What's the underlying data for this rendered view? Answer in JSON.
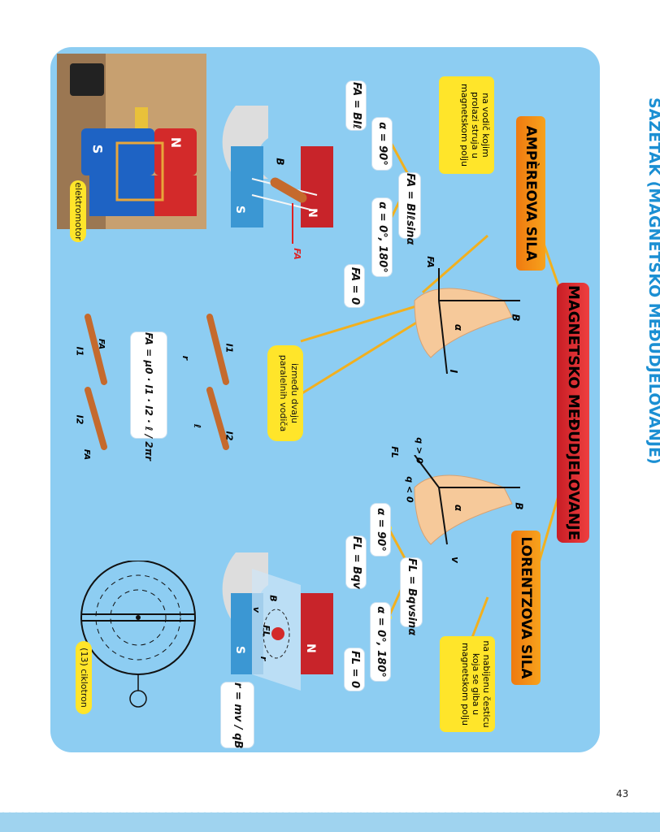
{
  "title": "SAŽETAK (MAGNETSKO MEĐUDJELOVANJE)",
  "center_title": "MAGNETSKO MEĐUDJELOVANJE",
  "ampere": {
    "title": "AMPÈREOVA SILA",
    "desc": "na vodič kojim prolazi struja u magnetskom polju",
    "formula": "FA = BIℓsinα",
    "case_90": "α = 90°",
    "case_90_result": "FA = BIℓ",
    "case_0": "α = 0°, 180°",
    "case_0_result": "FA = 0",
    "parallel_desc": "između dvaju paralelnih vodiča",
    "parallel_formula": "FA = μ0 · I1 · I2 · ℓ / 2πr",
    "magnet_n": "N",
    "magnet_s": "S",
    "label_b": "B",
    "label_fa": "FA",
    "label_i": "I",
    "label_a": "α",
    "label_i1": "I1",
    "label_i2": "I2",
    "label_r": "r",
    "label_l": "ℓ"
  },
  "lorentz": {
    "title": "LORENTZOVA SILA",
    "desc": "na nabijenu česticu koja se giba u magnetskom polju",
    "formula": "FL = Bqvsinα",
    "case_90": "α = 90°",
    "case_90_result": "FL = Bqv",
    "case_0": "α = 0°, 180°",
    "case_0_result": "FL = 0",
    "radius_formula": "r = mv / qB",
    "label_q_pos": "q > 0",
    "label_q_neg": "q < 0",
    "label_fl": "FL",
    "label_v": "v",
    "label_b": "B",
    "label_a": "α",
    "label_r": "r"
  },
  "photo_label": "elektromotor",
  "cyclotron_label": "(13) ciklotron",
  "page_number": "43",
  "colors": {
    "panel": "#8dcdf2",
    "title_blue": "#1b8fd3",
    "red": "#d42a2f",
    "orange": "#f28c17",
    "yellow": "#ffe52a"
  }
}
